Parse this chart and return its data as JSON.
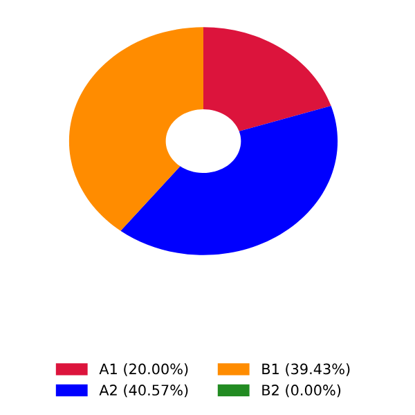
{
  "chart_data": {
    "type": "donut",
    "categories": [
      "A1 (20.00%)",
      "A2 (40.57%)",
      "B1 (39.43%)",
      "B2 (0.00%)"
    ],
    "values": [
      20.0,
      40.57,
      39.43,
      0.0
    ],
    "colors": [
      "#dc143c",
      "#0000ff",
      "#ff8c00",
      "#228b22"
    ],
    "legend": "bottom"
  }
}
